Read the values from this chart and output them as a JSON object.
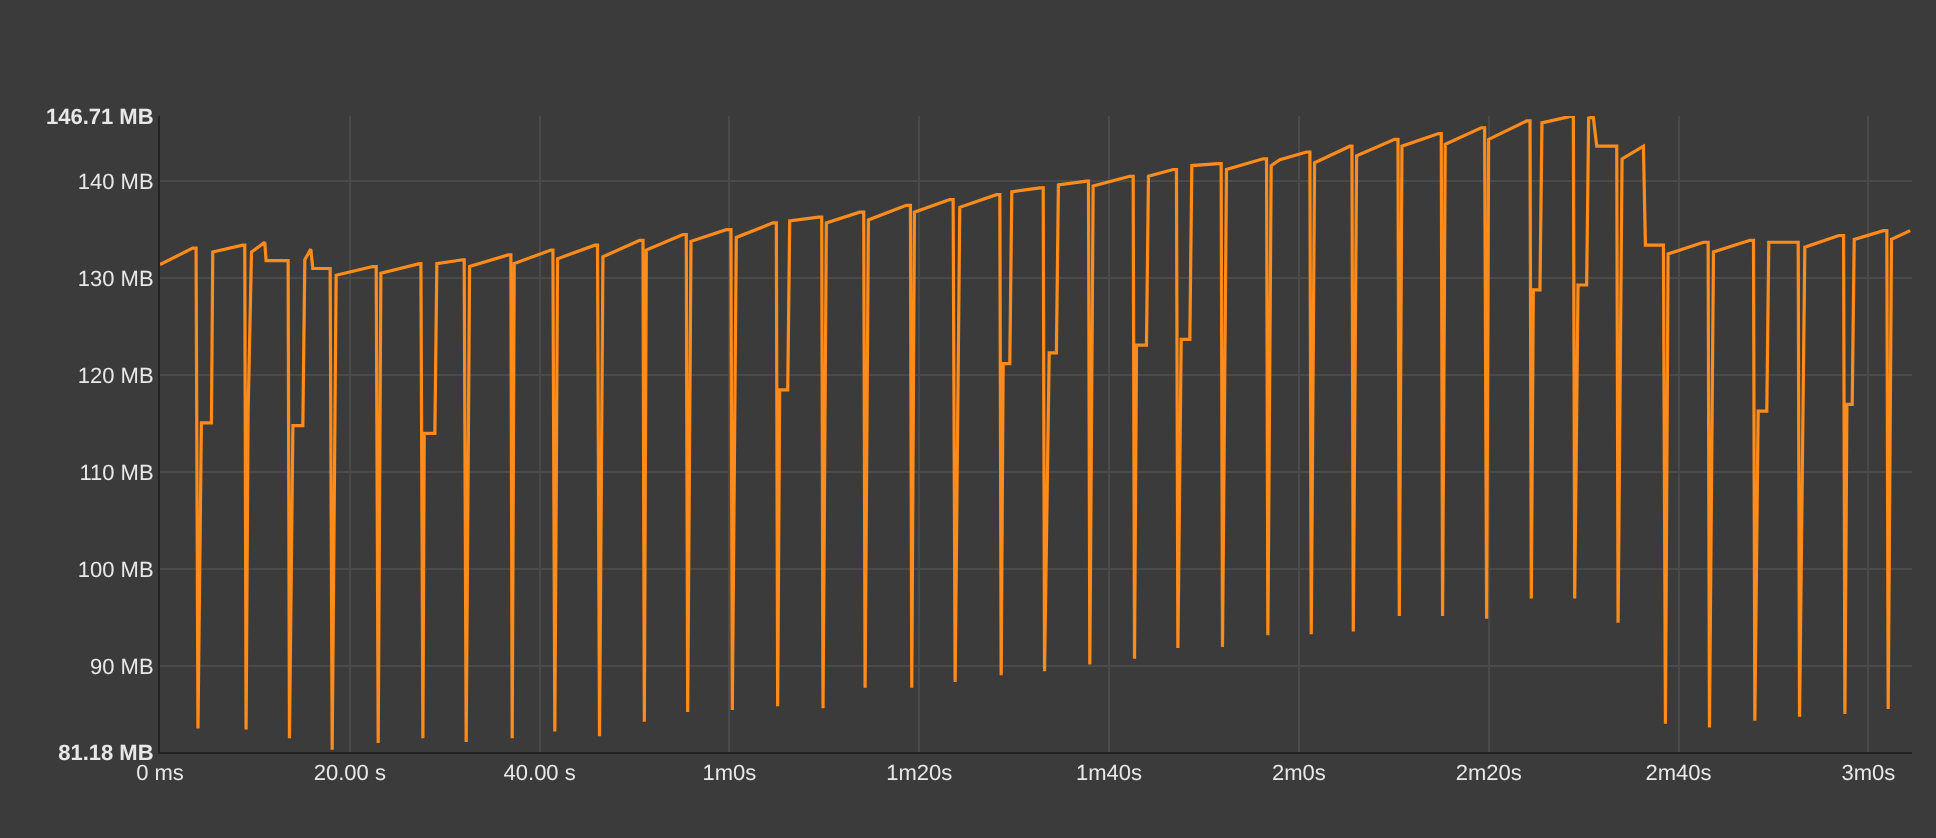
{
  "chart_data": {
    "type": "line",
    "x": [
      0,
      3.45,
      3.8,
      4.0,
      4.36,
      5.42,
      5.56,
      8.72,
      8.93,
      9.07,
      9.28,
      9.64,
      11.04,
      11.18,
      13.29,
      13.5,
      13.64,
      14.0,
      15.05,
      15.26,
      15.89,
      16.1,
      17.72,
      17.93,
      18.14,
      18.56,
      22.42,
      22.78,
      22.99,
      23.27,
      27.35,
      27.49,
      27.7,
      27.84,
      28.96,
      29.17,
      31.91,
      32.05,
      32.26,
      32.62,
      36.69,
      36.97,
      37.11,
      37.32,
      41.2,
      41.4,
      41.6,
      41.89,
      45.82,
      46.1,
      46.31,
      46.67,
      50.54,
      50.89,
      51.03,
      51.24,
      55.1,
      55.45,
      55.6,
      55.95,
      59.67,
      60.16,
      60.3,
      60.72,
      64.59,
      64.94,
      65.08,
      65.29,
      66.14,
      66.35,
      69.37,
      69.72,
      69.86,
      70.21,
      73.72,
      74.15,
      74.29,
      74.64,
      78.64,
      79.07,
      79.21,
      79.49,
      83.21,
      83.57,
      83.78,
      84.27,
      88.13,
      88.49,
      88.63,
      88.84,
      89.54,
      89.75,
      92.7,
      93.06,
      93.2,
      93.69,
      94.45,
      94.66,
      97.62,
      97.83,
      97.97,
      98.32,
      102.19,
      102.54,
      102.68,
      102.89,
      103.94,
      104.15,
      106.75,
      107.1,
      107.25,
      107.6,
      108.51,
      108.72,
      111.53,
      111.81,
      111.95,
      112.37,
      116.24,
      116.59,
      116.73,
      117.08,
      118.0,
      120.81,
      121.16,
      121.3,
      121.65,
      125.38,
      125.59,
      125.73,
      126.08,
      130.09,
      130.44,
      130.58,
      130.86,
      134.72,
      135.0,
      135.14,
      135.42,
      139.22,
      139.57,
      139.78,
      139.99,
      143.99,
      144.35,
      144.49,
      144.7,
      145.4,
      145.61,
      148.71,
      148.92,
      149.06,
      149.41,
      150.32,
      150.53,
      151.02,
      151.38,
      153.13,
      153.49,
      153.63,
      154.05,
      156.3,
      156.51,
      158.19,
      158.41,
      158.62,
      158.9,
      162.63,
      163.12,
      163.26,
      163.68,
      167.54,
      167.9,
      168.04,
      168.39,
      169.3,
      169.51,
      172.26,
      172.61,
      172.75,
      173.31,
      176.89,
      177.39,
      177.53,
      177.74,
      178.3,
      178.51,
      181.6,
      181.95,
      182.09,
      182.44,
      184.41
    ],
    "series": [
      {
        "color": "#ff8c1a",
        "values": [
          131.4,
          133.1,
          133.1,
          83.6,
          115.1,
          115.1,
          132.7,
          133.4,
          133.4,
          83.5,
          116.1,
          132.7,
          133.7,
          131.8,
          131.8,
          131.8,
          82.6,
          114.8,
          114.8,
          131.9,
          133.0,
          131.0,
          131.0,
          131.0,
          81.4,
          130.3,
          131.2,
          131.2,
          82.1,
          130.5,
          131.5,
          131.5,
          82.6,
          114.0,
          114.0,
          131.5,
          131.9,
          131.9,
          82.2,
          131.2,
          132.4,
          132.4,
          82.6,
          131.5,
          132.9,
          132.9,
          83.3,
          132.0,
          133.4,
          133.4,
          82.8,
          132.2,
          133.9,
          133.9,
          84.3,
          132.9,
          134.5,
          134.5,
          85.3,
          133.8,
          135.0,
          135.0,
          85.5,
          134.2,
          135.7,
          135.7,
          85.9,
          118.5,
          118.5,
          135.9,
          136.3,
          136.3,
          85.7,
          135.7,
          136.8,
          136.8,
          87.8,
          136.0,
          137.5,
          137.5,
          87.8,
          136.8,
          138.1,
          138.1,
          88.4,
          137.3,
          138.6,
          138.6,
          89.1,
          121.2,
          121.2,
          138.9,
          139.3,
          139.3,
          89.5,
          122.3,
          122.3,
          139.6,
          140.0,
          140.0,
          90.2,
          139.5,
          140.5,
          140.5,
          90.8,
          123.1,
          123.1,
          140.5,
          141.2,
          141.2,
          91.9,
          123.7,
          123.7,
          141.6,
          141.8,
          141.8,
          92.0,
          141.2,
          142.3,
          142.3,
          93.2,
          141.6,
          142.2,
          143.0,
          143.0,
          93.3,
          141.9,
          143.6,
          143.6,
          93.6,
          142.6,
          144.3,
          144.3,
          95.2,
          143.6,
          144.9,
          144.9,
          95.2,
          143.8,
          145.5,
          145.5,
          94.9,
          144.3,
          146.2,
          146.2,
          97.0,
          128.8,
          128.8,
          146.0,
          146.7,
          146.7,
          97.0,
          129.3,
          129.3,
          146.5,
          146.6,
          143.6,
          143.6,
          143.6,
          94.5,
          142.3,
          143.6,
          133.4,
          133.4,
          133.4,
          84.1,
          132.5,
          133.7,
          133.7,
          83.7,
          132.7,
          133.9,
          133.9,
          84.4,
          116.3,
          116.3,
          133.7,
          133.7,
          133.7,
          84.8,
          133.2,
          134.4,
          134.4,
          85.1,
          117.0,
          117.0,
          134.0,
          134.9,
          134.9,
          85.6,
          134.0,
          134.9
        ]
      }
    ],
    "xlim": [
      0,
      184.6
    ],
    "xticks": [
      {
        "value": 0,
        "label": "0 ms"
      },
      {
        "value": 20,
        "label": "20.00 s"
      },
      {
        "value": 40,
        "label": "40.00 s"
      },
      {
        "value": 60,
        "label": "1m0s"
      },
      {
        "value": 80,
        "label": "1m20s"
      },
      {
        "value": 100,
        "label": "1m40s"
      },
      {
        "value": 120,
        "label": "2m0s"
      },
      {
        "value": 140,
        "label": "2m20s"
      },
      {
        "value": 160,
        "label": "2m40s"
      },
      {
        "value": 180,
        "label": "3m0s"
      }
    ],
    "ylim": [
      81.18,
      146.71
    ],
    "yticks": [
      {
        "value": 81.18,
        "label": "81.18 MB"
      },
      {
        "value": 90,
        "label": "90 MB"
      },
      {
        "value": 100,
        "label": "100 MB"
      },
      {
        "value": 110,
        "label": "110 MB"
      },
      {
        "value": 120,
        "label": "120 MB"
      },
      {
        "value": 130,
        "label": "130 MB"
      },
      {
        "value": 140,
        "label": "140 MB"
      },
      {
        "value": 146.71,
        "label": "146.71 MB"
      }
    ],
    "grid": true,
    "marker": "none",
    "line_style": "solid"
  }
}
